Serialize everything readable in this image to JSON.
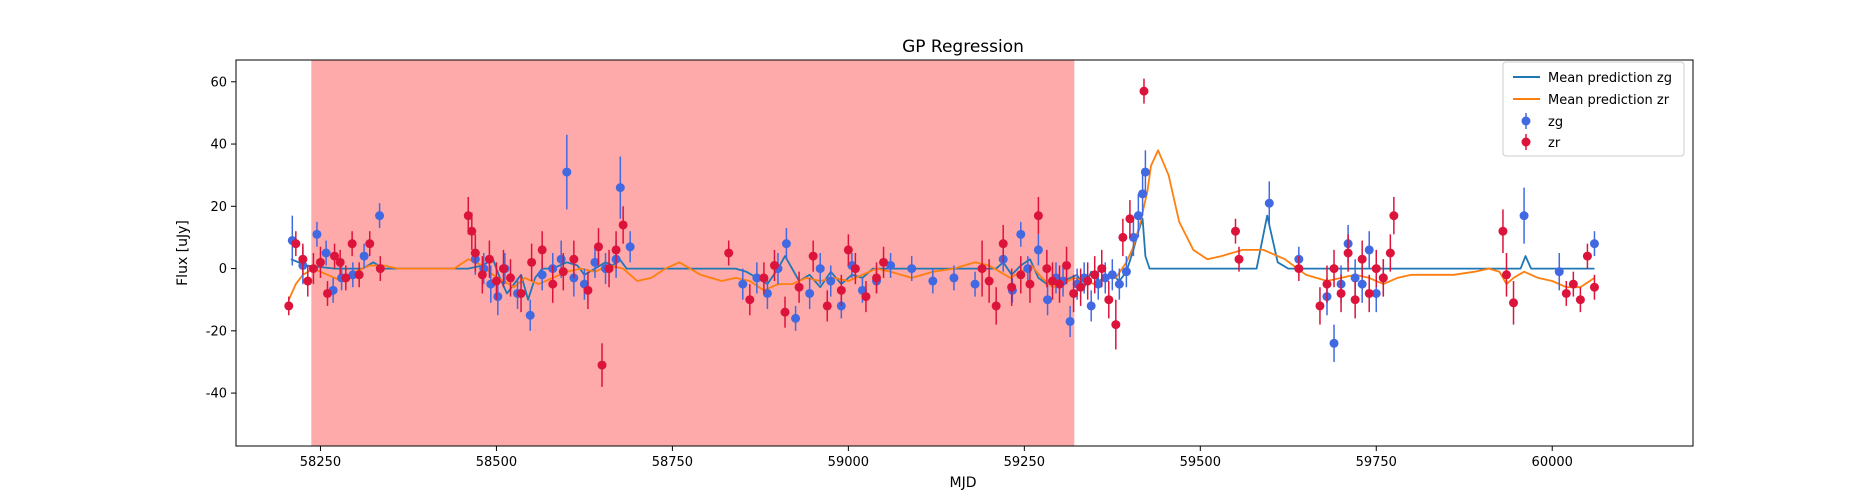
{
  "chart_data": {
    "type": "scatter",
    "title": "GP Regression",
    "xlabel": "MJD",
    "ylabel": "Flux [uJy]",
    "xlim": [
      58130,
      60200
    ],
    "ylim": [
      -57,
      67
    ],
    "x_ticks": [
      58250,
      58500,
      58750,
      59000,
      59250,
      59500,
      59750,
      60000
    ],
    "y_ticks": [
      -40,
      -20,
      0,
      20,
      40,
      60
    ],
    "grid": false,
    "legend_position": "top-right",
    "shaded_region": {
      "x": [
        58237,
        59321
      ],
      "color": "#ff5555"
    },
    "series": [
      {
        "name": "Mean prediction zg",
        "kind": "line",
        "color": "#1f77b4",
        "x": [
          58208,
          58230,
          58250,
          58270,
          58290,
          58310,
          58325,
          58340,
          58360,
          58380,
          58400,
          58420,
          58440,
          58460,
          58480,
          58495,
          58505,
          58515,
          58525,
          58535,
          58545,
          58555,
          58565,
          58580,
          58600,
          58615,
          58625,
          58640,
          58655,
          58665,
          58675,
          58685,
          58700,
          58720,
          58740,
          58760,
          58780,
          58800,
          58820,
          58840,
          58855,
          58870,
          58885,
          58900,
          58910,
          58920,
          58930,
          58945,
          58960,
          58975,
          58990,
          59005,
          59020,
          59035,
          59050,
          59070,
          59100,
          59130,
          59160,
          59190,
          59210,
          59220,
          59232,
          59245,
          59258,
          59270,
          59282,
          59295,
          59305,
          59315,
          59325,
          59335,
          59345,
          59355,
          59365,
          59375,
          59385,
          59395,
          59405,
          59412,
          59418,
          59422,
          59428,
          59440,
          59460,
          59500,
          59550,
          59580,
          59595,
          59610,
          59625,
          59640,
          59660,
          59680,
          59700,
          59720,
          59740,
          59760,
          59780,
          59800,
          59850,
          59900,
          59940,
          59955,
          59962,
          59970,
          59990,
          60010,
          60040,
          60060
        ],
        "y": [
          3,
          1,
          0.5,
          0,
          0,
          0,
          2,
          0,
          0,
          0,
          0,
          0,
          0,
          0,
          1,
          3,
          -3,
          -8,
          -5,
          -2,
          -10,
          -3,
          0,
          0,
          2,
          1,
          -2,
          0,
          2,
          1,
          3,
          0,
          0,
          0,
          0,
          0,
          0,
          0,
          0,
          0,
          -1,
          -3,
          -5,
          0,
          4,
          0,
          -4,
          -2,
          -6,
          -1,
          -5,
          -2,
          -3,
          0,
          0,
          0,
          0,
          0,
          0,
          0,
          0,
          2,
          -2,
          1,
          3,
          -3,
          -5,
          -2,
          -4,
          -3,
          -2,
          -6,
          -1,
          -4,
          -3,
          -2,
          -4,
          -1,
          6,
          12,
          16,
          4,
          0,
          0,
          0,
          0,
          0,
          0,
          17,
          2,
          0,
          0,
          0,
          0,
          0,
          0,
          0,
          0,
          0,
          0,
          0,
          0,
          0,
          0,
          4,
          0,
          0,
          0,
          0,
          0
        ]
      },
      {
        "name": "Mean prediction zr",
        "kind": "line",
        "color": "#ff7f0e",
        "x": [
          58205,
          58215,
          58225,
          58240,
          58260,
          58280,
          58300,
          58320,
          58340,
          58360,
          58380,
          58400,
          58420,
          58440,
          58460,
          58480,
          58495,
          58510,
          58525,
          58540,
          58560,
          58580,
          58600,
          58620,
          58640,
          58660,
          58680,
          58700,
          58720,
          58740,
          58760,
          58790,
          58820,
          58840,
          58860,
          58880,
          58900,
          58920,
          58940,
          58960,
          58980,
          59000,
          59020,
          59040,
          59060,
          59090,
          59120,
          59150,
          59180,
          59200,
          59215,
          59230,
          59245,
          59260,
          59275,
          59290,
          59305,
          59320,
          59335,
          59350,
          59365,
          59380,
          59395,
          59405,
          59415,
          59425,
          59430,
          59440,
          59455,
          59470,
          59490,
          59510,
          59530,
          59560,
          59590,
          59620,
          59650,
          59680,
          59700,
          59720,
          59740,
          59760,
          59780,
          59800,
          59830,
          59860,
          59890,
          59910,
          59925,
          59935,
          59945,
          59960,
          59980,
          60000,
          60020,
          60040,
          60060
        ],
        "y": [
          -10,
          -5,
          -2,
          0,
          -2,
          -4,
          -1,
          1,
          1,
          0,
          0,
          0,
          0,
          0,
          3,
          1,
          -2,
          -4,
          -6,
          -3,
          -5,
          -3,
          -1,
          0,
          -1,
          1,
          0,
          -4,
          -3,
          0,
          2,
          -2,
          -4,
          -3,
          -4,
          -7,
          -5,
          -5,
          -3,
          -4,
          -3,
          -4,
          -2,
          0,
          -1,
          -3,
          -1,
          0,
          2,
          1,
          -1,
          -3,
          -1,
          1,
          -3,
          -6,
          -5,
          -3,
          -4,
          -5,
          -3,
          -3,
          2,
          7,
          15,
          25,
          33,
          38,
          30,
          15,
          6,
          3,
          4,
          6,
          6,
          3,
          -2,
          -4,
          -3,
          -2,
          -3,
          -5,
          -3,
          -2,
          -2,
          -2,
          -1,
          0,
          -1,
          -5,
          -3,
          -1,
          -3,
          -4,
          -6,
          -6,
          -3
        ]
      },
      {
        "name": "zg",
        "kind": "errorbar",
        "color": "#4169e1",
        "x": [
          58210,
          58225,
          58245,
          58258,
          58268,
          58280,
          58296,
          58312,
          58334,
          58470,
          58482,
          58492,
          58502,
          58512,
          58530,
          58548,
          58565,
          58580,
          58592,
          58600,
          58610,
          58625,
          58640,
          58655,
          58670,
          58676,
          58690,
          58850,
          58870,
          58885,
          58900,
          58912,
          58925,
          58945,
          58960,
          58975,
          58990,
          59005,
          59020,
          59040,
          59060,
          59090,
          59120,
          59150,
          59180,
          59220,
          59233,
          59245,
          59255,
          59270,
          59283,
          59295,
          59305,
          59315,
          59325,
          59335,
          59345,
          59355,
          59365,
          59375,
          59385,
          59395,
          59405,
          59412,
          59418,
          59422,
          59598,
          59640,
          59680,
          59690,
          59700,
          59710,
          59720,
          59730,
          59740,
          59750,
          59760,
          59960,
          60010,
          60060
        ],
        "y": [
          9,
          1,
          11,
          5,
          -7,
          -3,
          -2,
          4,
          17,
          3,
          0,
          -5,
          -9,
          0,
          -8,
          -15,
          -2,
          0,
          3,
          31,
          -3,
          -5,
          2,
          0,
          3,
          26,
          7,
          -5,
          -3,
          -8,
          0,
          8,
          -16,
          -8,
          0,
          -4,
          -12,
          1,
          -7,
          -4,
          1,
          0,
          -4,
          -3,
          -5,
          3,
          -7,
          11,
          0,
          6,
          -10,
          -3,
          -4,
          -17,
          -5,
          -3,
          -12,
          -5,
          -3,
          -2,
          -5,
          -1,
          10,
          17,
          24,
          31,
          21,
          3,
          -9,
          -24,
          -5,
          8,
          -3,
          -5,
          6,
          -8,
          -3,
          17,
          -1,
          8
        ],
        "err": [
          8,
          6,
          4,
          4,
          4,
          4,
          4,
          4,
          4,
          5,
          5,
          6,
          6,
          5,
          5,
          5,
          5,
          5,
          6,
          12,
          6,
          5,
          5,
          5,
          6,
          10,
          5,
          5,
          5,
          5,
          5,
          5,
          4,
          5,
          5,
          5,
          4,
          4,
          4,
          4,
          4,
          4,
          4,
          4,
          4,
          4,
          4,
          4,
          4,
          5,
          5,
          5,
          5,
          5,
          5,
          5,
          5,
          5,
          5,
          5,
          5,
          5,
          6,
          7,
          7,
          7,
          7,
          4,
          6,
          6,
          6,
          6,
          6,
          6,
          6,
          6,
          6,
          9,
          6,
          4
        ]
      },
      {
        "name": "zr",
        "kind": "errorbar",
        "color": "#dc143c",
        "x": [
          58205,
          58215,
          58225,
          58232,
          58240,
          58250,
          58260,
          58270,
          58278,
          58286,
          58295,
          58305,
          58320,
          58335,
          58460,
          58465,
          58470,
          58480,
          58490,
          58500,
          58510,
          58520,
          58535,
          58550,
          58565,
          58580,
          58595,
          58610,
          58630,
          58645,
          58650,
          58660,
          58670,
          58680,
          58830,
          58860,
          58880,
          58895,
          58910,
          58930,
          58950,
          58970,
          58990,
          59000,
          59010,
          59025,
          59040,
          59050,
          59190,
          59200,
          59210,
          59220,
          59232,
          59245,
          59258,
          59270,
          59282,
          59290,
          59300,
          59310,
          59320,
          59330,
          59340,
          59350,
          59360,
          59370,
          59380,
          59390,
          59400,
          59420,
          59550,
          59555,
          59640,
          59670,
          59680,
          59690,
          59700,
          59710,
          59720,
          59730,
          59740,
          59750,
          59760,
          59770,
          59775,
          59930,
          59935,
          59945,
          60020,
          60030,
          60040,
          60050,
          60060
        ],
        "y": [
          -12,
          8,
          3,
          -4,
          0,
          2,
          -8,
          4,
          2,
          -3,
          8,
          -2,
          8,
          0,
          17,
          12,
          5,
          -2,
          3,
          -4,
          0,
          -3,
          -8,
          2,
          6,
          -5,
          -1,
          3,
          -7,
          7,
          -31,
          0,
          6,
          14,
          5,
          -10,
          -3,
          1,
          -14,
          -6,
          4,
          -12,
          -7,
          6,
          0,
          -9,
          -3,
          2,
          0,
          -4,
          -12,
          8,
          -6,
          -2,
          -5,
          17,
          0,
          -4,
          -5,
          1,
          -8,
          -6,
          -4,
          -2,
          0,
          -10,
          -18,
          10,
          16,
          57,
          12,
          3,
          0,
          -12,
          -5,
          0,
          -8,
          5,
          -10,
          3,
          -8,
          0,
          -3,
          5,
          17,
          12,
          -2,
          -11,
          -8,
          -5,
          -10,
          4,
          -6
        ],
        "err": [
          3,
          4,
          5,
          5,
          5,
          5,
          4,
          4,
          4,
          4,
          4,
          4,
          4,
          4,
          6,
          6,
          6,
          6,
          6,
          6,
          6,
          6,
          6,
          6,
          6,
          6,
          6,
          6,
          6,
          6,
          7,
          6,
          6,
          6,
          4,
          5,
          5,
          5,
          5,
          5,
          5,
          5,
          5,
          5,
          5,
          5,
          5,
          5,
          9,
          7,
          6,
          6,
          6,
          6,
          6,
          6,
          6,
          6,
          6,
          6,
          6,
          6,
          6,
          6,
          6,
          6,
          8,
          6,
          6,
          4,
          4,
          4,
          4,
          6,
          6,
          6,
          6,
          6,
          6,
          6,
          6,
          6,
          6,
          6,
          6,
          7,
          7,
          7,
          4,
          4,
          4,
          4,
          4
        ]
      }
    ]
  }
}
